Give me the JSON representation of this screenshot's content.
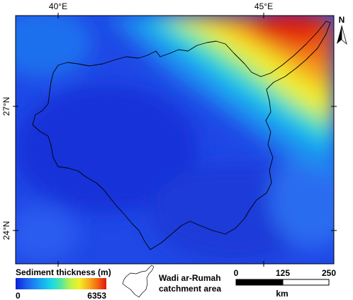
{
  "map": {
    "graticule": {
      "lon_labels": [
        "40°E",
        "45°E"
      ],
      "lat_labels": [
        "27°N",
        "24°N"
      ]
    },
    "north_arrow": {
      "label": "N"
    },
    "legend": {
      "title": "Sediment thickness (m)",
      "min_label": "0",
      "max_label": "6353",
      "min_value": 0,
      "max_value": 6353,
      "unit": "m",
      "colormap": [
        "#0b1fd6",
        "#1f5ff0",
        "#18a8f2",
        "#1ad9e6",
        "#53e6a0",
        "#b8f24a",
        "#f2f02a",
        "#f7b21c",
        "#f36a12",
        "#e0160c"
      ]
    },
    "catchment_legend": {
      "label_line1": "Wadi ar-Rumah",
      "label_line2": "catchment area"
    },
    "scale_bar": {
      "labels": [
        "0",
        "125",
        "250"
      ],
      "unit": "km"
    }
  }
}
